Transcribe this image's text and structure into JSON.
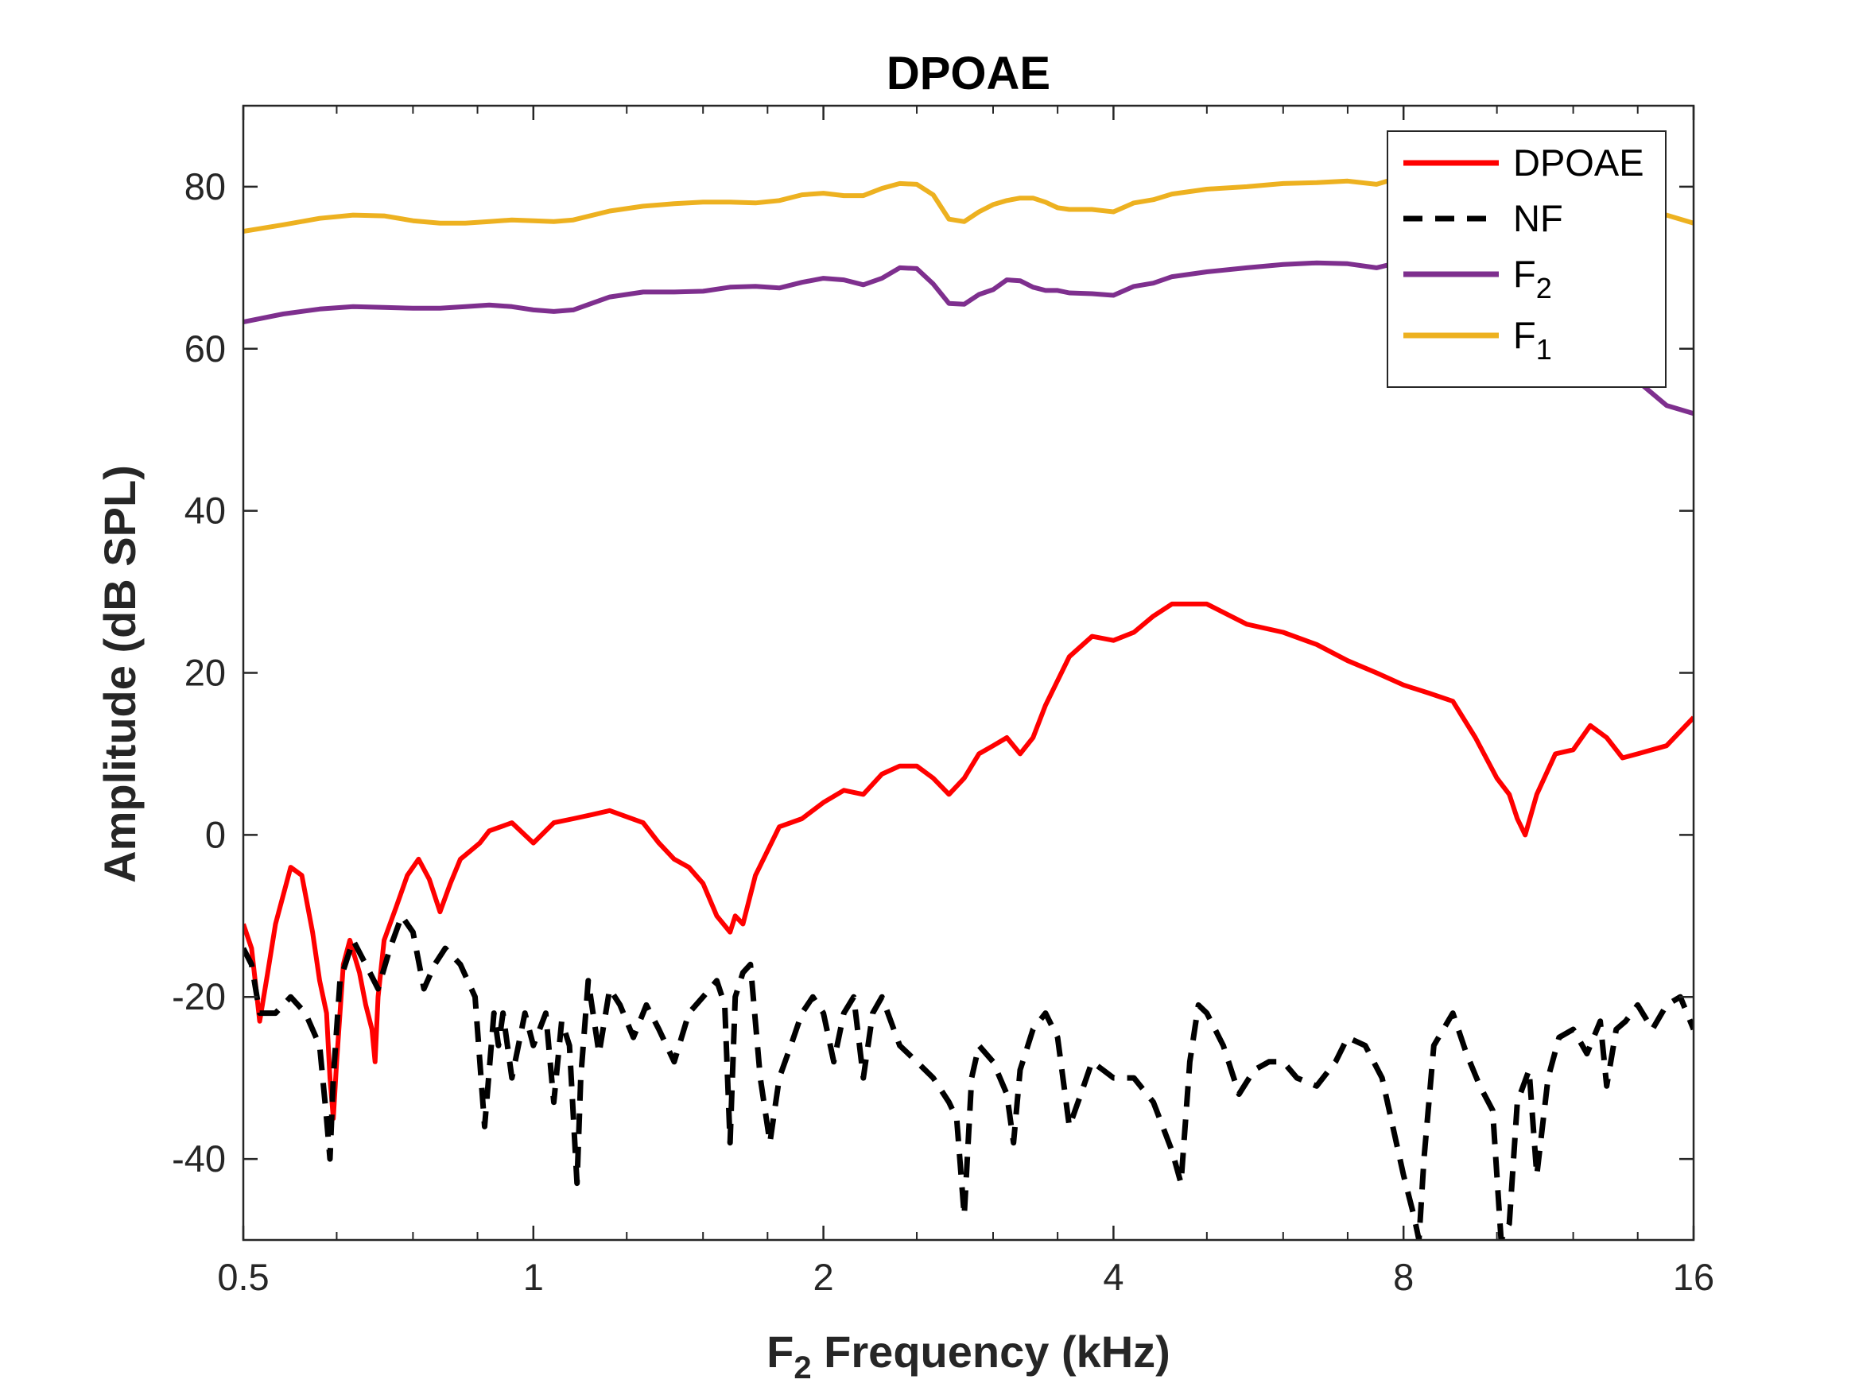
{
  "chart_data": {
    "type": "line",
    "title": "DPOAE",
    "xlabel_main": "F",
    "xlabel_sub": "2",
    "xlabel_rest": " Frequency (kHz)",
    "ylabel": "Amplitude (dB SPL)",
    "xscale": "log2",
    "xlim": [
      0.5,
      16
    ],
    "ylim": [
      -50,
      90
    ],
    "xticks": [
      0.5,
      1,
      2,
      4,
      8,
      16
    ],
    "xtick_labels": [
      "0.5",
      "1",
      "2",
      "4",
      "8",
      "16"
    ],
    "yticks": [
      -40,
      -20,
      0,
      20,
      40,
      60,
      80
    ],
    "ytick_labels": [
      "-40",
      "-20",
      "0",
      "20",
      "40",
      "60",
      "80"
    ],
    "grid": false,
    "legend_position": "top-right",
    "legend": [
      {
        "main": "DPOAE",
        "sub": "",
        "color": "#FF0000",
        "dash": false
      },
      {
        "main": "NF",
        "sub": "",
        "color": "#000000",
        "dash": true
      },
      {
        "main": "F",
        "sub": "2",
        "color": "#7E2F8E",
        "dash": false
      },
      {
        "main": "F",
        "sub": "1",
        "color": "#EDB120",
        "dash": false
      }
    ],
    "series": [
      {
        "name": "F1",
        "color": "#EDB120",
        "dash": false,
        "x": [
          0.5,
          0.55,
          0.6,
          0.65,
          0.7,
          0.75,
          0.8,
          0.85,
          0.9,
          0.95,
          1.0,
          1.05,
          1.1,
          1.2,
          1.3,
          1.4,
          1.5,
          1.6,
          1.7,
          1.8,
          1.9,
          2.0,
          2.1,
          2.2,
          2.3,
          2.4,
          2.5,
          2.6,
          2.7,
          2.8,
          2.9,
          3.0,
          3.1,
          3.2,
          3.3,
          3.4,
          3.5,
          3.6,
          3.8,
          4.0,
          4.2,
          4.4,
          4.6,
          4.8,
          5.0,
          5.5,
          6.0,
          6.5,
          7.0,
          7.5,
          8.0,
          8.5,
          9.0,
          9.5,
          10.0,
          10.5,
          11.0,
          12.0,
          13.0,
          14.0,
          15.0,
          16.0
        ],
        "y": [
          74.5,
          75.3,
          76.1,
          76.5,
          76.4,
          75.8,
          75.5,
          75.5,
          75.7,
          75.9,
          75.8,
          75.7,
          75.9,
          77.0,
          77.6,
          77.9,
          78.1,
          78.1,
          78.0,
          78.3,
          79.0,
          79.2,
          78.9,
          78.9,
          79.8,
          80.4,
          80.3,
          79.0,
          76.0,
          75.7,
          76.9,
          77.8,
          78.3,
          78.6,
          78.6,
          78.1,
          77.4,
          77.2,
          77.2,
          76.9,
          78.0,
          78.4,
          79.1,
          79.4,
          79.7,
          80.0,
          80.4,
          80.5,
          80.7,
          80.3,
          81.3,
          82.0,
          82.5,
          82.0,
          81.5,
          81.0,
          80.5,
          80.0,
          78.5,
          77.5,
          76.5,
          75.5
        ]
      },
      {
        "name": "F2",
        "color": "#7E2F8E",
        "dash": false,
        "x": [
          0.5,
          0.55,
          0.6,
          0.65,
          0.7,
          0.75,
          0.8,
          0.85,
          0.9,
          0.95,
          1.0,
          1.05,
          1.1,
          1.2,
          1.3,
          1.4,
          1.5,
          1.6,
          1.7,
          1.8,
          1.9,
          2.0,
          2.1,
          2.2,
          2.3,
          2.4,
          2.5,
          2.6,
          2.7,
          2.8,
          2.9,
          3.0,
          3.1,
          3.2,
          3.3,
          3.4,
          3.5,
          3.6,
          3.8,
          4.0,
          4.2,
          4.4,
          4.6,
          4.8,
          5.0,
          5.5,
          6.0,
          6.5,
          7.0,
          7.5,
          8.0,
          8.5,
          9.0,
          9.5,
          10.0,
          10.5,
          11.0,
          12.0,
          13.0,
          14.0,
          15.0,
          16.0
        ],
        "y": [
          63.3,
          64.3,
          64.9,
          65.2,
          65.1,
          65.0,
          65.0,
          65.2,
          65.4,
          65.2,
          64.8,
          64.6,
          64.8,
          66.4,
          67.0,
          67.0,
          67.1,
          67.6,
          67.7,
          67.5,
          68.2,
          68.7,
          68.5,
          67.9,
          68.7,
          70.0,
          69.9,
          68.0,
          65.6,
          65.5,
          66.7,
          67.3,
          68.5,
          68.4,
          67.6,
          67.2,
          67.2,
          66.9,
          66.8,
          66.6,
          67.7,
          68.1,
          68.9,
          69.2,
          69.5,
          70.0,
          70.4,
          70.6,
          70.5,
          70.0,
          70.8,
          71.5,
          71.5,
          70.8,
          70.0,
          69.0,
          67.5,
          64.0,
          60.0,
          56.0,
          53.0,
          52.0
        ]
      },
      {
        "name": "DPOAE",
        "color": "#FF0000",
        "dash": false,
        "x": [
          0.5,
          0.51,
          0.52,
          0.53,
          0.54,
          0.56,
          0.575,
          0.59,
          0.6,
          0.61,
          0.615,
          0.62,
          0.625,
          0.635,
          0.645,
          0.66,
          0.67,
          0.68,
          0.685,
          0.69,
          0.7,
          0.72,
          0.74,
          0.76,
          0.78,
          0.8,
          0.82,
          0.84,
          0.86,
          0.88,
          0.9,
          0.95,
          1.0,
          1.05,
          1.1,
          1.15,
          1.2,
          1.3,
          1.35,
          1.4,
          1.45,
          1.5,
          1.55,
          1.6,
          1.62,
          1.65,
          1.7,
          1.8,
          1.9,
          2.0,
          2.1,
          2.2,
          2.3,
          2.4,
          2.5,
          2.6,
          2.7,
          2.8,
          2.9,
          3.0,
          3.1,
          3.2,
          3.3,
          3.4,
          3.6,
          3.8,
          4.0,
          4.2,
          4.4,
          4.6,
          4.8,
          5.0,
          5.5,
          6.0,
          6.5,
          7.0,
          7.5,
          8.0,
          8.5,
          9.0,
          9.5,
          10.0,
          10.3,
          10.5,
          10.7,
          11.0,
          11.5,
          12.0,
          12.5,
          13.0,
          13.5,
          14.0,
          15.0,
          16.0
        ],
        "y": [
          -11.0,
          -14.0,
          -23.0,
          -17.0,
          -11.0,
          -4.0,
          -5.0,
          -12.0,
          -18.0,
          -22.0,
          -30.0,
          -35.0,
          -28.0,
          -16.0,
          -13.0,
          -17.0,
          -21.0,
          -24.0,
          -28.0,
          -20.0,
          -13.0,
          -9.0,
          -5.0,
          -3.0,
          -5.5,
          -9.5,
          -6.0,
          -3.0,
          -2.0,
          -1.0,
          0.5,
          1.5,
          -1.0,
          1.5,
          2.0,
          2.5,
          3.0,
          1.5,
          -1.0,
          -3.0,
          -4.0,
          -6.0,
          -10.0,
          -12.0,
          -10.0,
          -11.0,
          -5.0,
          1.0,
          2.0,
          4.0,
          5.5,
          5.0,
          7.5,
          8.5,
          8.5,
          7.0,
          5.0,
          7.0,
          10.0,
          11.0,
          12.0,
          10.0,
          12.0,
          16.0,
          22.0,
          24.5,
          24.0,
          25.0,
          27.0,
          28.5,
          28.5,
          28.5,
          26.0,
          25.0,
          23.5,
          21.5,
          20.0,
          18.5,
          17.5,
          16.5,
          12.0,
          7.0,
          5.0,
          2.0,
          0.0,
          5.0,
          10.0,
          10.5,
          13.5,
          12.0,
          9.5,
          10.0,
          11.0,
          14.5
        ]
      },
      {
        "name": "NF",
        "color": "#000000",
        "dash": true,
        "x": [
          0.5,
          0.51,
          0.52,
          0.54,
          0.56,
          0.58,
          0.6,
          0.61,
          0.615,
          0.62,
          0.63,
          0.65,
          0.67,
          0.69,
          0.71,
          0.73,
          0.75,
          0.77,
          0.79,
          0.81,
          0.84,
          0.87,
          0.89,
          0.91,
          0.92,
          0.93,
          0.95,
          0.98,
          1.0,
          1.03,
          1.05,
          1.07,
          1.09,
          1.11,
          1.12,
          1.14,
          1.17,
          1.2,
          1.23,
          1.27,
          1.31,
          1.35,
          1.4,
          1.45,
          1.5,
          1.55,
          1.58,
          1.6,
          1.62,
          1.65,
          1.68,
          1.72,
          1.76,
          1.8,
          1.85,
          1.9,
          1.95,
          2.0,
          2.05,
          2.1,
          2.15,
          2.2,
          2.25,
          2.3,
          2.4,
          2.5,
          2.6,
          2.7,
          2.75,
          2.8,
          2.85,
          2.9,
          3.0,
          3.1,
          3.15,
          3.2,
          3.3,
          3.4,
          3.5,
          3.6,
          3.7,
          3.8,
          3.9,
          4.0,
          4.2,
          4.4,
          4.6,
          4.7,
          4.8,
          4.9,
          5.0,
          5.2,
          5.4,
          5.6,
          5.8,
          6.0,
          6.2,
          6.5,
          6.8,
          7.0,
          7.3,
          7.6,
          8.0,
          8.2,
          8.3,
          8.4,
          8.6,
          9.0,
          9.3,
          9.6,
          9.9,
          10.1,
          10.3,
          10.5,
          10.8,
          11.0,
          11.3,
          11.6,
          12.0,
          12.4,
          12.8,
          13.0,
          13.3,
          13.6,
          14.0,
          14.5,
          15.0,
          15.5,
          16.0
        ],
        "y": [
          -14.0,
          -16.0,
          -22.0,
          -22.0,
          -20.0,
          -22.0,
          -26.0,
          -35.0,
          -40.0,
          -30.0,
          -18.0,
          -13.0,
          -16.0,
          -19.0,
          -14.0,
          -10.0,
          -12.0,
          -19.0,
          -16.0,
          -14.0,
          -16.0,
          -20.0,
          -36.0,
          -22.0,
          -26.0,
          -22.0,
          -30.0,
          -22.0,
          -26.0,
          -22.0,
          -33.0,
          -23.0,
          -26.0,
          -43.0,
          -30.0,
          -18.0,
          -27.0,
          -19.0,
          -21.0,
          -25.0,
          -21.0,
          -24.0,
          -28.0,
          -22.0,
          -20.0,
          -18.0,
          -21.0,
          -38.0,
          -20.0,
          -17.0,
          -16.0,
          -30.0,
          -38.0,
          -30.0,
          -26.0,
          -22.0,
          -20.0,
          -22.0,
          -28.0,
          -22.0,
          -20.0,
          -30.0,
          -22.0,
          -20.0,
          -26.0,
          -28.0,
          -30.0,
          -33.0,
          -35.0,
          -47.0,
          -30.0,
          -26.0,
          -28.0,
          -32.0,
          -38.0,
          -29.0,
          -24.0,
          -22.0,
          -25.0,
          -36.0,
          -32.0,
          -28.0,
          -29.0,
          -30.0,
          -30.0,
          -33.0,
          -39.0,
          -43.0,
          -28.0,
          -21.0,
          -22.0,
          -26.0,
          -32.0,
          -29.0,
          -28.0,
          -28.0,
          -30.0,
          -31.0,
          -28.0,
          -25.0,
          -26.0,
          -30.0,
          -42.0,
          -47.0,
          -50.0,
          -40.0,
          -26.0,
          -22.0,
          -27.0,
          -31.0,
          -34.0,
          -50.0,
          -48.0,
          -33.0,
          -29.0,
          -42.0,
          -30.0,
          -25.0,
          -24.0,
          -27.0,
          -23.0,
          -31.0,
          -24.0,
          -23.0,
          -21.0,
          -24.0,
          -21.0,
          -20.0,
          -24.0
        ]
      }
    ]
  }
}
